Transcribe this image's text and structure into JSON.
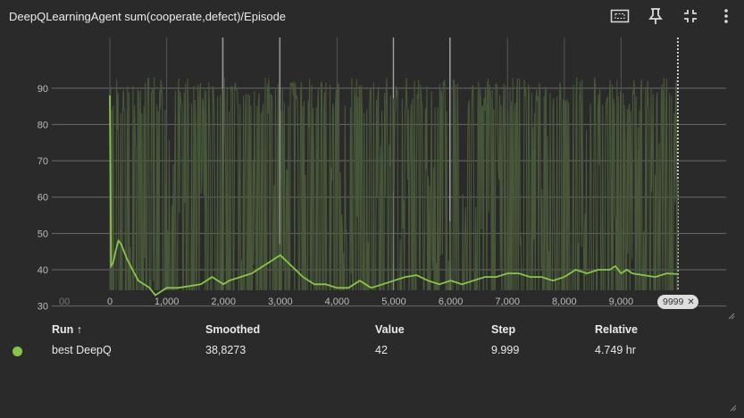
{
  "header": {
    "title": "DeepQLearningAgent sum(cooperate,defect)/Episode",
    "icons": [
      "fit-domain-icon",
      "pin-icon",
      "collapse-icon",
      "more-vert-icon"
    ]
  },
  "chart_data": {
    "type": "line",
    "title": "",
    "xlabel": "",
    "ylabel": "",
    "xlim": [
      -1000,
      10000
    ],
    "ylim": [
      25,
      93
    ],
    "x_ticks": [
      "00",
      "0",
      "1,000",
      "2,000",
      "3,000",
      "4,000",
      "5,000",
      "6,000",
      "7,000",
      "8,000",
      "9,000"
    ],
    "x_tick_values": [
      -800,
      0,
      1000,
      2000,
      3000,
      4000,
      5000,
      6000,
      7000,
      8000,
      9000
    ],
    "y_ticks": [
      "30",
      "40",
      "50",
      "60",
      "70",
      "80",
      "90"
    ],
    "y_tick_values": [
      30,
      40,
      50,
      60,
      70,
      80,
      90
    ],
    "grid": true,
    "series": [
      {
        "name": "best DeepQ",
        "color": "#8bc34a",
        "raw_color": "#4a5a3a",
        "smoothed": {
          "x": [
            0,
            20,
            60,
            100,
            150,
            200,
            250,
            300,
            400,
            500,
            600,
            700,
            800,
            1000,
            1200,
            1400,
            1600,
            1700,
            1800,
            1900,
            2000,
            2100,
            2300,
            2500,
            2700,
            2800,
            2900,
            3000,
            3200,
            3400,
            3600,
            3800,
            4000,
            4200,
            4400,
            4600,
            4800,
            5000,
            5200,
            5400,
            5600,
            5800,
            6000,
            6200,
            6400,
            6600,
            6800,
            7000,
            7200,
            7400,
            7600,
            7800,
            8000,
            8200,
            8400,
            8600,
            8800,
            8900,
            9000,
            9100,
            9200,
            9400,
            9600,
            9800,
            9999
          ],
          "y": [
            88,
            41,
            42,
            45,
            48,
            47,
            45,
            43,
            40,
            37,
            36,
            35,
            33,
            35,
            35,
            35.5,
            36,
            37,
            38,
            37,
            36,
            37,
            38,
            39,
            41,
            42,
            43,
            44,
            41,
            38,
            36,
            36,
            35,
            35,
            37,
            35,
            36,
            37,
            38,
            38.5,
            37,
            36,
            37,
            36,
            37,
            38,
            38,
            39,
            39,
            38,
            38,
            37,
            38,
            40,
            39,
            40,
            40,
            41,
            39,
            40,
            39,
            38.5,
            38,
            39,
            38.8
          ]
        }
      }
    ],
    "annotations": [
      "9999"
    ]
  },
  "table": {
    "columns": [
      "Run ↑",
      "Smoothed",
      "Value",
      "Step",
      "Relative"
    ],
    "rows": [
      {
        "color": "#8bc34a",
        "run": "best DeepQ",
        "smoothed": "38,8273",
        "value": "42",
        "step": "9.999",
        "relative": "4.749 hr"
      }
    ]
  }
}
